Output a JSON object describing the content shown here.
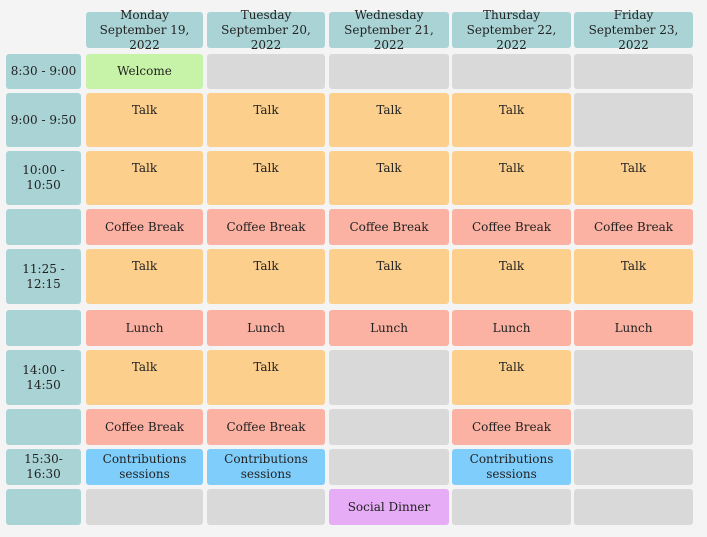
{
  "days": [
    {
      "day": "Monday",
      "date": "September 19, 2022"
    },
    {
      "day": "Tuesday",
      "date": "September 20, 2022"
    },
    {
      "day": "Wednesday",
      "date": "September 21, 2022"
    },
    {
      "day": "Thursday",
      "date": "September 22, 2022"
    },
    {
      "day": "Friday",
      "date": "September 23, 2022"
    }
  ],
  "times": [
    "8:30 - 9:00",
    "9:00 - 9:50",
    "10:00 - 10:50",
    "",
    "11:25 - 12:15",
    "",
    "14:00 - 14:50",
    "",
    "15:30- 16:30",
    ""
  ],
  "labels": {
    "welcome": "Welcome",
    "talk": "Talk",
    "coffee": "Coffee Break",
    "lunch": "Lunch",
    "contrib": "Contributions sessions",
    "dinner": "Social Dinner"
  },
  "colors": {
    "header": "#a9d3d5",
    "empty": "#d9d9d9",
    "talk": "#fccf8c",
    "break": "#fbb2a2",
    "welcome": "#c7f3a8",
    "contrib": "#7fcdfb",
    "dinner": "#e7acf6"
  }
}
